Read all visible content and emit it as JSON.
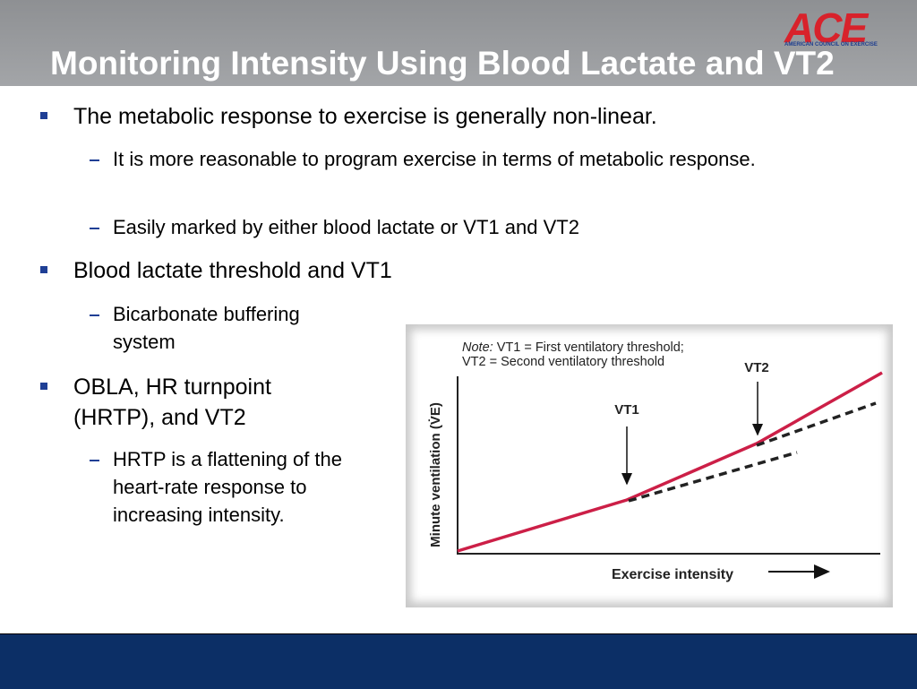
{
  "header": {
    "title": "Monitoring Intensity Using Blood Lactate and VT2",
    "logo": {
      "mark": "ACE",
      "text": "AMERICAN COUNCIL ON EXERCISE"
    }
  },
  "bullets": [
    {
      "text": "The metabolic response to exercise is generally non-linear.",
      "sub": [
        "It is more reasonable to program exercise in terms of metabolic response.",
        "Easily marked by either blood lactate or VT1 and VT2"
      ]
    },
    {
      "text": "Blood lactate threshold and VT1",
      "sub": [
        "Bicarbonate buffering system"
      ]
    },
    {
      "text": "OBLA, HR turnpoint (HRTP), and VT2",
      "sub": [
        "HRTP is a flattening of the heart-rate response to increasing intensity."
      ]
    }
  ],
  "figure": {
    "note_label": "Note:",
    "note": [
      "VT1 = First ventilatory threshold;",
      "VT2 = Second ventilatory threshold"
    ],
    "markers": [
      "VT1",
      "VT2"
    ],
    "x_label": "Exercise intensity",
    "y_label": "Minute ventilation (V̇E)"
  }
}
